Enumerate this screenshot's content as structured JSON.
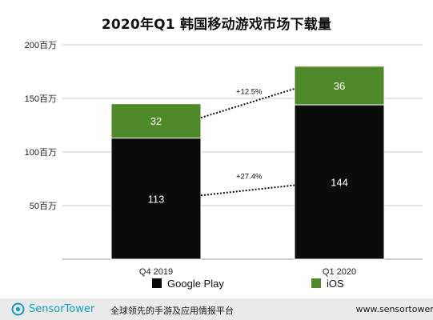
{
  "chart_data": {
    "type": "bar",
    "stacked": true,
    "title": "2020年Q1 韩国移动游戏市场下载量",
    "categories": [
      "Q4 2019",
      "Q1 2020"
    ],
    "series": [
      {
        "name": "Google Play",
        "values": [
          113,
          144
        ],
        "color": "#0b0b0b",
        "labels": [
          "113",
          "144"
        ]
      },
      {
        "name": "iOS",
        "values": [
          32,
          36
        ],
        "color": "#4f8a2a",
        "labels": [
          "32",
          "36"
        ]
      }
    ],
    "ylim": [
      0,
      200
    ],
    "yticks": [
      {
        "value": 50,
        "label": "50百万"
      },
      {
        "value": 100,
        "label": "100百万"
      },
      {
        "value": 150,
        "label": "150百万"
      },
      {
        "value": 200,
        "label": "200百万"
      }
    ],
    "grid": true,
    "legend_position": "bottom",
    "annotations": [
      {
        "series": "iOS",
        "text": "+12.5%"
      },
      {
        "series": "Google Play",
        "text": "+27.4%"
      }
    ]
  },
  "footer": {
    "brand_name": "SensorTower",
    "tagline": "全球领先的手游及应用情报平台",
    "url": "www.sensortower-"
  },
  "colors": {
    "brand": "#0f9ec7",
    "footer_bg": "#eaeaea",
    "grid": "#cccccc"
  },
  "icons": [
    "sensortower-logo-icon"
  ]
}
